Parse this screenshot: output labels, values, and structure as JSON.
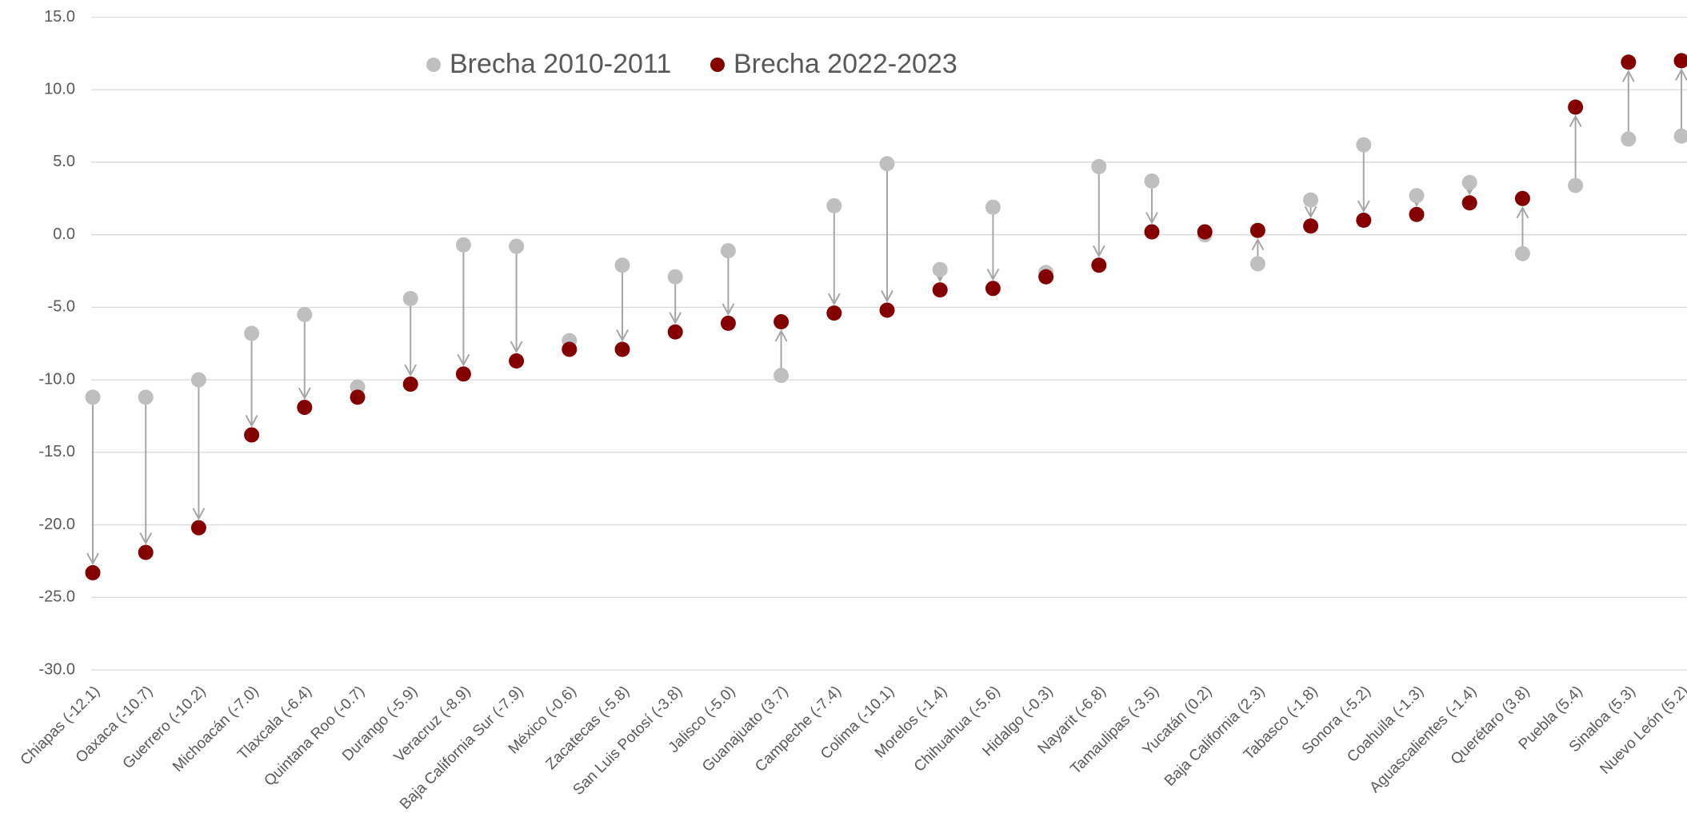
{
  "chart_data": {
    "type": "dumbbell",
    "categories": [
      "Chiapas (-12.1)",
      "Oaxaca (-10.7)",
      "Guerrero (-10.2)",
      "Michoacán (-7.0)",
      "Tlaxcala (-6.4)",
      "Quintana Roo (-0.7)",
      "Durango (-5.9)",
      "Veracruz (-8.9)",
      "Baja California Sur (-7.9)",
      "México (-0.6)",
      "Zacatecas (-5.8)",
      "San Luis Potosí (-3.8)",
      "Jalisco (-5.0)",
      "Guanajuato (3.7)",
      "Campeche (-7.4)",
      "Colima (-10.1)",
      "Morelos (-1.4)",
      "Chihuahua (-5.6)",
      "Hidalgo (-0.3)",
      "Nayarit (-6.8)",
      "Tamaulipas (-3.5)",
      "Yucatán (0.2)",
      "Baja California (2.3)",
      "Tabasco (-1.8)",
      "Sonora (-5.2)",
      "Coahuila (-1.3)",
      "Aguascalientes (-1.4)",
      "Querétaro (3.8)",
      "Puebla (5.4)",
      "Sinaloa (5.3)",
      "Nuevo León (5.2)"
    ],
    "series": [
      {
        "name": "Brecha 2010-2011",
        "color": "#bfbfbf",
        "values": [
          -11.2,
          -11.2,
          -10.0,
          -6.8,
          -5.5,
          -10.5,
          -4.4,
          -0.7,
          -0.8,
          -7.3,
          -2.1,
          -2.9,
          -1.1,
          -9.7,
          2.0,
          4.9,
          -2.4,
          1.9,
          -2.6,
          4.7,
          3.7,
          0.0,
          -2.0,
          2.4,
          6.2,
          2.7,
          3.6,
          -1.3,
          3.4,
          6.6,
          6.8
        ]
      },
      {
        "name": "Brecha 2022-2023",
        "color": "#840000",
        "values": [
          -23.3,
          -21.9,
          -20.2,
          -13.8,
          -11.9,
          -11.2,
          -10.3,
          -9.6,
          -8.7,
          -7.9,
          -7.9,
          -6.7,
          -6.1,
          -6.0,
          -5.4,
          -5.2,
          -3.8,
          -3.7,
          -2.9,
          -2.1,
          0.2,
          0.2,
          0.3,
          0.6,
          1.0,
          1.4,
          2.2,
          2.5,
          8.8,
          11.9,
          12.0
        ]
      }
    ],
    "arrow_color": "#a6a6a6",
    "ylim": [
      -30,
      15
    ],
    "yticks": [
      {
        "value": -30,
        "label": "-30.0"
      },
      {
        "value": -25,
        "label": "-25.0"
      },
      {
        "value": -20,
        "label": "-20.0"
      },
      {
        "value": -15,
        "label": "-15.0"
      },
      {
        "value": -10,
        "label": "-10.0"
      },
      {
        "value": -5,
        "label": "-5.0"
      },
      {
        "value": 0,
        "label": "0.0"
      },
      {
        "value": 5,
        "label": "5.0"
      },
      {
        "value": 10,
        "label": "10.0"
      },
      {
        "value": 15,
        "label": "15.0"
      }
    ],
    "grid": true,
    "legend": "top"
  }
}
